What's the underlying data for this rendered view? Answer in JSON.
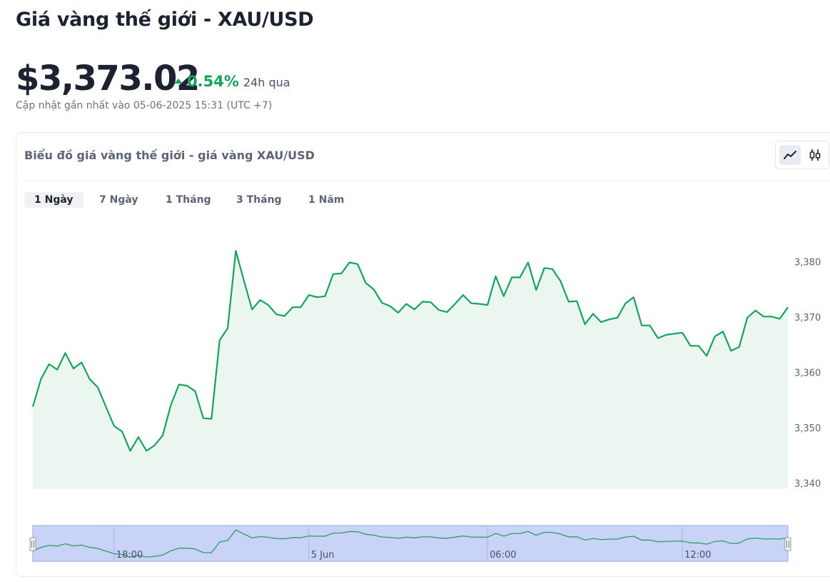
{
  "header": {
    "title": "Giá vàng thế giới - XAU/USD",
    "price": "$3,373.02",
    "change": "0.54%",
    "change_period": "24h qua",
    "updated": "Cập nhật gần nhất vào 05-06-2025 15:31 (UTC +7)"
  },
  "card": {
    "title": "Biểu đồ giá vàng thế giới - giá vàng XAU/USD",
    "chart_type_toggle": {
      "line_icon": "line-chart-icon",
      "candle_icon": "candlestick-icon",
      "selected": "line"
    },
    "ranges": [
      {
        "label": "1 Ngày",
        "active": true
      },
      {
        "label": "7 Ngày",
        "active": false
      },
      {
        "label": "1 Tháng",
        "active": false
      },
      {
        "label": "3 Tháng",
        "active": false
      },
      {
        "label": "1 Năm",
        "active": false
      }
    ]
  },
  "colors": {
    "line": "#16a35b",
    "area": "#eaf6ef",
    "up": "#16a35b",
    "navigator_fill": "#c9d3f7",
    "navigator_border": "#9aa7e6"
  },
  "chart_data": {
    "type": "area",
    "title": "",
    "xlabel": "",
    "ylabel": "",
    "ylim": [
      3339,
      3385
    ],
    "y_ticks": [
      3340,
      3350,
      3360,
      3370,
      3380
    ],
    "y_tick_labels": [
      "3,340",
      "3,350",
      "3,360",
      "3,370",
      "3,380"
    ],
    "axis_position": "right",
    "x_ticks": [
      {
        "label": "18:00",
        "index": 10
      },
      {
        "label": "5 Jun",
        "index": 34
      },
      {
        "label": "06:00",
        "index": 56
      },
      {
        "label": "12:00",
        "index": 80
      }
    ],
    "series": [
      {
        "values": [
          3353.8,
          3358.8,
          3361.5,
          3360.5,
          3363.5,
          3360.7,
          3361.8,
          3358.8,
          3357.3,
          3353.8,
          3350.3,
          3349.3,
          3345.8,
          3348.3,
          3345.8,
          3346.8,
          3348.6,
          3354.1,
          3357.8,
          3357.6,
          3356.6,
          3351.7,
          3351.6,
          3365.8,
          3368.0,
          3382.0,
          3376.6,
          3371.4,
          3373.1,
          3372.2,
          3370.5,
          3370.2,
          3371.8,
          3371.8,
          3374.0,
          3373.6,
          3373.8,
          3377.8,
          3377.9,
          3379.9,
          3379.6,
          3376.2,
          3375.0,
          3372.6,
          3372.0,
          3370.8,
          3372.4,
          3371.4,
          3372.8,
          3372.7,
          3371.3,
          3370.9,
          3372.4,
          3374.0,
          3372.5,
          3372.4,
          3372.2,
          3377.4,
          3373.8,
          3377.2,
          3377.2,
          3379.9,
          3374.9,
          3378.9,
          3378.7,
          3376.5,
          3372.8,
          3372.9,
          3368.7,
          3370.6,
          3369.1,
          3369.6,
          3369.9,
          3372.5,
          3373.6,
          3368.5,
          3368.5,
          3366.2,
          3366.8,
          3367.0,
          3367.2,
          3364.8,
          3364.8,
          3363.0,
          3366.5,
          3367.4,
          3363.9,
          3364.6,
          3369.9,
          3371.2,
          3370.1,
          3370.1,
          3369.7,
          3371.8
        ]
      }
    ]
  }
}
